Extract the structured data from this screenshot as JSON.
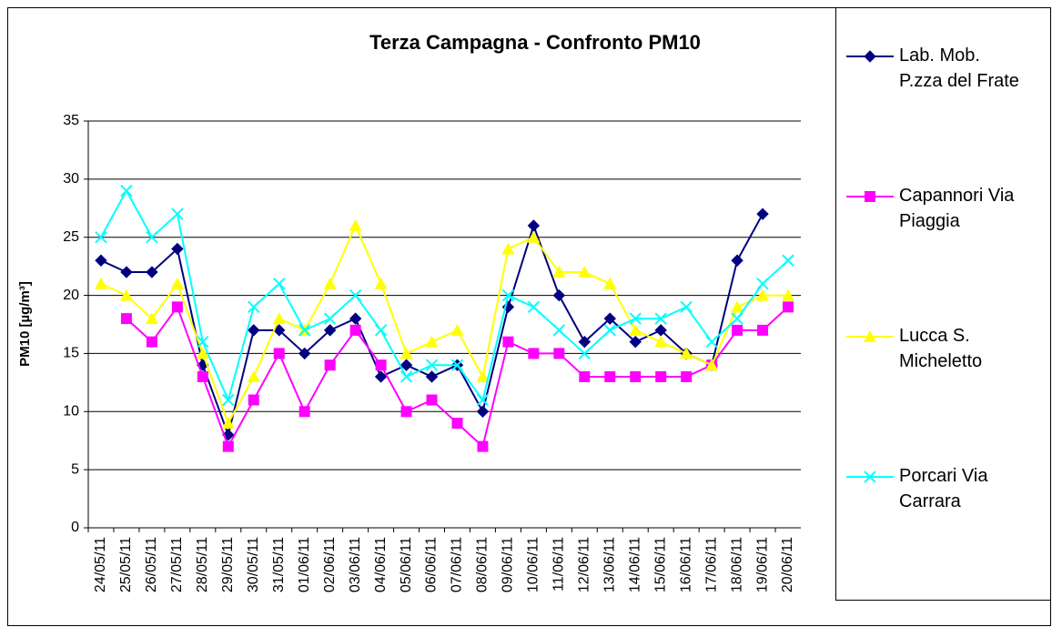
{
  "chart_data": {
    "type": "line",
    "title": "Terza Campagna - Confronto PM10",
    "y_label": "PM10 [µg/m³]",
    "categories": [
      "24/05/11",
      "25/05/11",
      "26/05/11",
      "27/05/11",
      "28/05/11",
      "29/05/11",
      "30/05/11",
      "31/05/11",
      "01/06/11",
      "02/06/11",
      "03/06/11",
      "04/06/11",
      "05/06/11",
      "06/06/11",
      "07/06/11",
      "08/06/11",
      "09/06/11",
      "10/06/11",
      "11/06/11",
      "12/06/11",
      "13/06/11",
      "14/06/11",
      "15/06/11",
      "16/06/11",
      "17/06/11",
      "18/06/11",
      "19/06/11",
      "20/06/11"
    ],
    "series": [
      {
        "name": "Lab. Mob. P.zza del Frate",
        "color": "#000080",
        "marker": "diamond",
        "values": [
          23,
          22,
          22,
          24,
          14,
          8,
          17,
          17,
          15,
          17,
          18,
          13,
          14,
          13,
          14,
          10,
          19,
          26,
          20,
          16,
          18,
          16,
          17,
          15,
          14,
          23,
          27,
          null
        ]
      },
      {
        "name": "Capannori Via Piaggia",
        "color": "#ff00ff",
        "marker": "square",
        "values": [
          null,
          18,
          16,
          19,
          13,
          7,
          11,
          15,
          10,
          14,
          17,
          14,
          10,
          11,
          9,
          7,
          16,
          15,
          15,
          13,
          13,
          13,
          13,
          13,
          14,
          17,
          17,
          19
        ]
      },
      {
        "name": "Lucca S. Micheletto",
        "color": "#ffff00",
        "marker": "triangle",
        "values": [
          21,
          20,
          18,
          21,
          15,
          9,
          13,
          18,
          17,
          21,
          26,
          21,
          15,
          16,
          17,
          13,
          24,
          25,
          22,
          22,
          21,
          17,
          16,
          15,
          14,
          19,
          20,
          20
        ]
      },
      {
        "name": "Porcari Via Carrara",
        "color": "#00ffff",
        "marker": "x",
        "values": [
          25,
          29,
          25,
          27,
          16,
          11,
          19,
          21,
          17,
          18,
          20,
          17,
          13,
          14,
          14,
          11,
          20,
          19,
          17,
          15,
          17,
          18,
          18,
          19,
          16,
          18,
          21,
          23
        ]
      }
    ],
    "ylim": [
      0,
      35
    ],
    "yticks": [
      0,
      5,
      10,
      15,
      20,
      25,
      30,
      35
    ],
    "grid": true,
    "legend": "right"
  }
}
